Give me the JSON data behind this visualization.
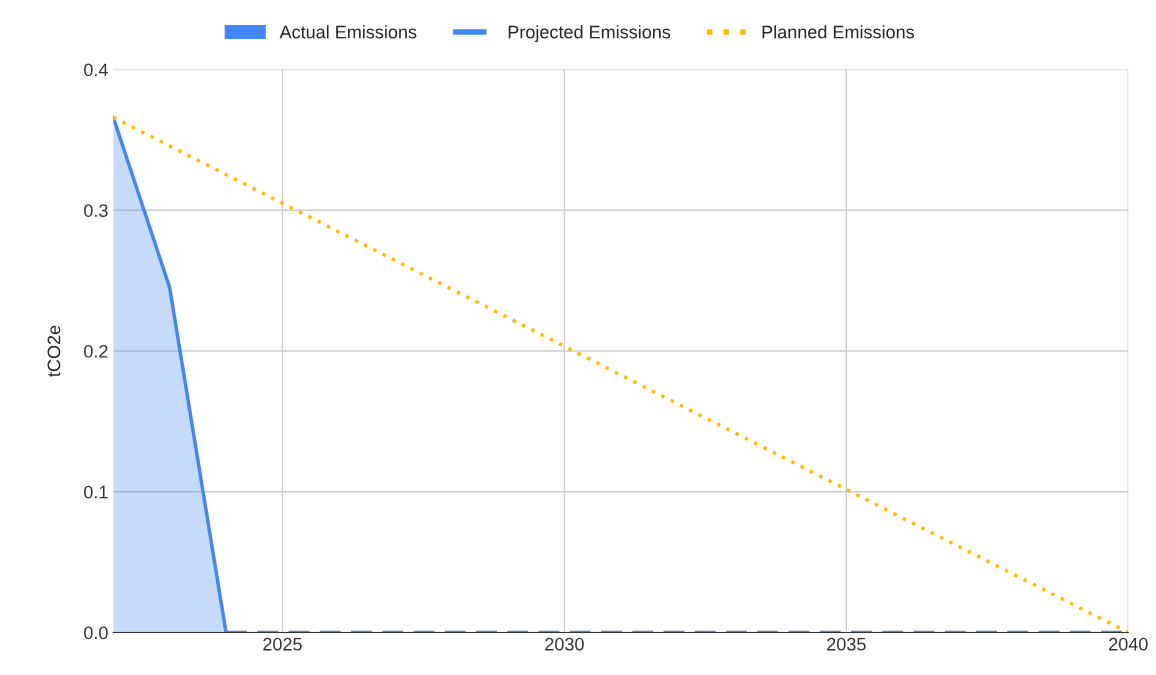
{
  "chart_data": {
    "type": "line",
    "ylabel": "tCO2e",
    "xlim": [
      2022,
      2040
    ],
    "xticks": [
      2025,
      2030,
      2035,
      2040
    ],
    "ylim": [
      0,
      0.4
    ],
    "yticks": [
      {
        "value": 0,
        "label": "0.0"
      },
      0.1,
      0.2,
      0.3,
      0.4
    ],
    "grid": true,
    "legend": "top",
    "series": [
      {
        "name": "Actual Emissions",
        "type": "area",
        "color": "#4285f4",
        "x": [
          2022,
          2023,
          2024
        ],
        "values": [
          0.366,
          0.245,
          0
        ],
        "line_style": "solid"
      },
      {
        "name": "Projected Emissions",
        "color": "#4285f4",
        "x": [
          2024,
          2040
        ],
        "values": [
          0,
          0
        ],
        "line_style": "dashed"
      },
      {
        "name": "Planned Emissions",
        "color": "#fbbc04",
        "x": [
          2022,
          2040
        ],
        "values": [
          0.366,
          0
        ],
        "line_style": "dotted"
      }
    ]
  }
}
